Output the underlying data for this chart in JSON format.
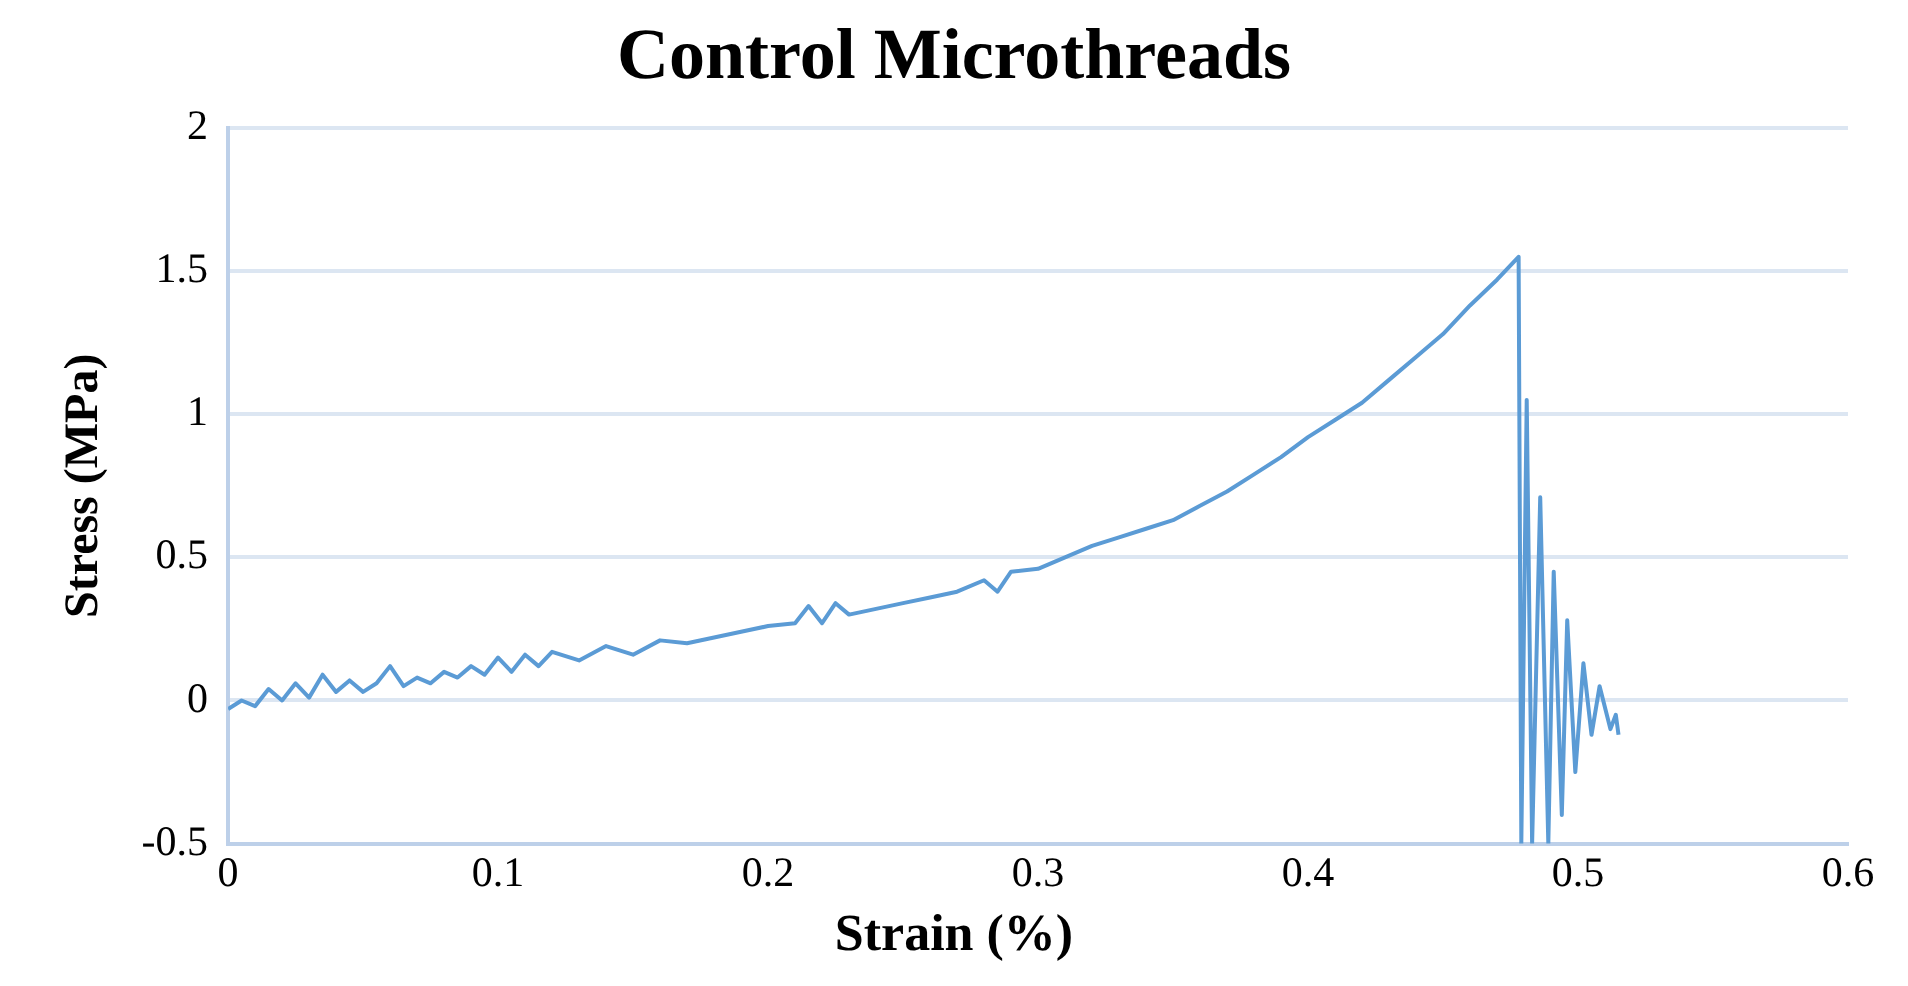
{
  "chart_data": {
    "type": "line",
    "title": "Control Microthreads",
    "xlabel": "Strain (%)",
    "ylabel": "Stress (MPa)",
    "xlim": [
      0,
      0.6
    ],
    "xticks": [
      0,
      0.1,
      0.2,
      0.3,
      0.4,
      0.5,
      0.6
    ],
    "ylim": [
      -0.5,
      2
    ],
    "yticks": [
      -0.5,
      0,
      0.5,
      1,
      1.5,
      2
    ],
    "grid": "y",
    "marker": "none",
    "line_style": "solid",
    "series": [
      {
        "color": "#5b9bd5",
        "x": [
          0,
          0.005,
          0.01,
          0.015,
          0.02,
          0.025,
          0.03,
          0.035,
          0.04,
          0.045,
          0.05,
          0.055,
          0.06,
          0.065,
          0.07,
          0.075,
          0.08,
          0.085,
          0.09,
          0.095,
          0.1,
          0.105,
          0.11,
          0.115,
          0.12,
          0.13,
          0.14,
          0.15,
          0.16,
          0.17,
          0.18,
          0.19,
          0.2,
          0.21,
          0.215,
          0.22,
          0.225,
          0.23,
          0.24,
          0.25,
          0.26,
          0.27,
          0.28,
          0.285,
          0.29,
          0.3,
          0.31,
          0.32,
          0.33,
          0.34,
          0.35,
          0.36,
          0.37,
          0.38,
          0.39,
          0.4,
          0.41,
          0.42,
          0.43,
          0.44,
          0.45,
          0.46,
          0.47,
          0.475,
          0.478,
          0.479,
          0.481,
          0.483,
          0.486,
          0.489,
          0.491,
          0.494,
          0.496,
          0.499,
          0.502,
          0.505,
          0.508,
          0.512,
          0.514,
          0.515
        ],
        "values": [
          -0.03,
          0.0,
          -0.02,
          0.04,
          0.0,
          0.06,
          0.01,
          0.09,
          0.03,
          0.07,
          0.03,
          0.06,
          0.12,
          0.05,
          0.08,
          0.06,
          0.1,
          0.08,
          0.12,
          0.09,
          0.15,
          0.1,
          0.16,
          0.12,
          0.17,
          0.14,
          0.19,
          0.16,
          0.21,
          0.2,
          0.22,
          0.24,
          0.26,
          0.27,
          0.33,
          0.27,
          0.34,
          0.3,
          0.32,
          0.34,
          0.36,
          0.38,
          0.42,
          0.38,
          0.45,
          0.46,
          0.5,
          0.54,
          0.57,
          0.6,
          0.63,
          0.68,
          0.73,
          0.79,
          0.85,
          0.92,
          0.98,
          1.04,
          1.12,
          1.2,
          1.28,
          1.38,
          1.47,
          1.52,
          1.55,
          -0.5,
          1.05,
          -0.5,
          0.71,
          -0.5,
          0.45,
          -0.4,
          0.28,
          -0.25,
          0.13,
          -0.12,
          0.05,
          -0.1,
          -0.05,
          -0.12
        ]
      }
    ]
  }
}
